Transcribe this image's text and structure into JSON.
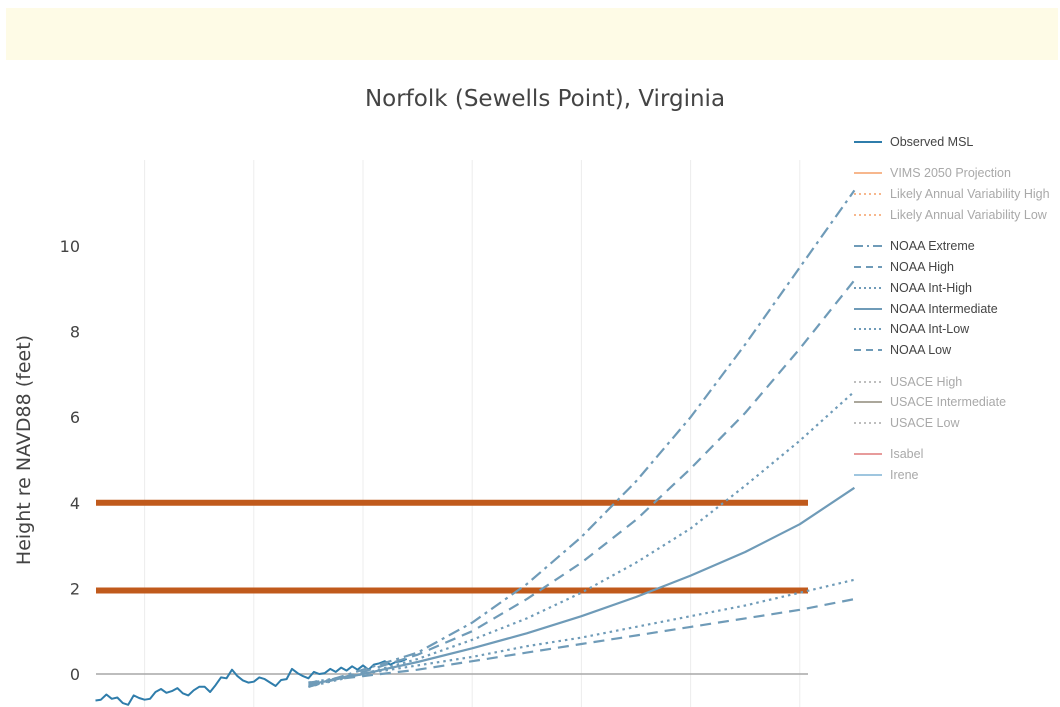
{
  "chart_data": {
    "type": "line",
    "title": "Norfolk (Sewells Point), Virginia",
    "ylabel": "Height re NAVD88 (feet)",
    "xlim": [
      1920,
      2100
    ],
    "ylim": [
      -0.8,
      11.5
    ],
    "yticks": [
      "0",
      "2",
      "4",
      "6",
      "8",
      "10"
    ],
    "ytick_values": [
      0,
      2,
      4,
      6,
      8,
      10
    ],
    "x_gridlines": [
      1930,
      1950,
      1970,
      1990,
      2010,
      2030,
      2050
    ],
    "hlines": [
      {
        "value": 4.0,
        "color": "#c05a1c"
      },
      {
        "value": 1.95,
        "color": "#c05a1c"
      },
      {
        "value": 0.0,
        "color": "#a7a7a7"
      }
    ],
    "series": [
      {
        "name": "Observed MSL",
        "style": "solid",
        "color": "#2f7dab",
        "visible": true,
        "x": [
          1921,
          1922,
          1923,
          1924,
          1925,
          1926,
          1927,
          1928,
          1929,
          1930,
          1931,
          1932,
          1933,
          1934,
          1935,
          1936,
          1937,
          1938,
          1939,
          1940,
          1941,
          1942,
          1943,
          1944,
          1945,
          1946,
          1947,
          1948,
          1949,
          1950,
          1951,
          1952,
          1953,
          1954,
          1955,
          1956,
          1957,
          1958,
          1959,
          1960,
          1961,
          1962,
          1963,
          1964,
          1965,
          1966,
          1967,
          1968,
          1969,
          1970,
          1971,
          1972,
          1973,
          1974,
          1975,
          1976,
          1977,
          1978
        ],
        "y": [
          -0.62,
          -0.6,
          -0.48,
          -0.58,
          -0.55,
          -0.68,
          -0.72,
          -0.5,
          -0.56,
          -0.6,
          -0.58,
          -0.42,
          -0.35,
          -0.44,
          -0.4,
          -0.33,
          -0.45,
          -0.5,
          -0.38,
          -0.3,
          -0.3,
          -0.42,
          -0.26,
          -0.08,
          -0.1,
          0.1,
          -0.05,
          -0.15,
          -0.2,
          -0.18,
          -0.08,
          -0.12,
          -0.2,
          -0.28,
          -0.14,
          -0.12,
          0.12,
          0.02,
          -0.05,
          -0.1,
          0.05,
          0.0,
          0.02,
          0.12,
          0.05,
          0.15,
          0.08,
          0.18,
          0.1,
          0.2,
          0.1,
          0.22,
          0.25,
          0.3,
          0.22,
          0.28,
          0.3,
          0.35
        ]
      },
      {
        "name": "VIMS 2050 Projection",
        "style": "solid",
        "color": "#f5a067",
        "visible": false
      },
      {
        "name": "Likely Annual Variability High",
        "style": "dot",
        "color": "#f5a067",
        "visible": false
      },
      {
        "name": "Likely Annual Variability Low",
        "style": "dot",
        "color": "#f5a067",
        "visible": false
      },
      {
        "name": "NOAA Extreme",
        "style": "dashdot",
        "color": "#6f9bb8",
        "visible": true,
        "x": [
          1960,
          1970,
          1980,
          1990,
          2000,
          2010,
          2020,
          2030,
          2040,
          2050,
          2060
        ],
        "y": [
          -0.3,
          0.1,
          0.5,
          1.2,
          2.1,
          3.2,
          4.5,
          6.0,
          7.7,
          9.5,
          11.3
        ]
      },
      {
        "name": "NOAA High",
        "style": "dash",
        "color": "#6f9bb8",
        "visible": true,
        "x": [
          1960,
          1970,
          1980,
          1990,
          2000,
          2010,
          2020,
          2030,
          2040,
          2050,
          2060
        ],
        "y": [
          -0.3,
          0.05,
          0.45,
          1.0,
          1.75,
          2.6,
          3.6,
          4.8,
          6.1,
          7.6,
          9.2
        ]
      },
      {
        "name": "NOAA Int-High",
        "style": "dot",
        "color": "#6f9bb8",
        "visible": true,
        "x": [
          1960,
          1970,
          1980,
          1990,
          2000,
          2010,
          2020,
          2030,
          2040,
          2050,
          2060
        ],
        "y": [
          -0.3,
          0.0,
          0.35,
          0.8,
          1.3,
          1.9,
          2.6,
          3.4,
          4.4,
          5.45,
          6.6
        ]
      },
      {
        "name": "NOAA Intermediate",
        "style": "solid",
        "color": "#6f9bb8",
        "visible": true,
        "x": [
          1960,
          1970,
          1980,
          1990,
          2000,
          2010,
          2020,
          2030,
          2040,
          2050,
          2060
        ],
        "y": [
          -0.25,
          0.0,
          0.28,
          0.6,
          0.95,
          1.35,
          1.8,
          2.3,
          2.85,
          3.5,
          4.35
        ]
      },
      {
        "name": "NOAA Int-Low",
        "style": "dot",
        "color": "#6f9bb8",
        "visible": true,
        "x": [
          1960,
          1970,
          1980,
          1990,
          2000,
          2010,
          2020,
          2030,
          2040,
          2050,
          2060
        ],
        "y": [
          -0.2,
          0.0,
          0.2,
          0.4,
          0.65,
          0.85,
          1.1,
          1.35,
          1.6,
          1.9,
          2.2
        ]
      },
      {
        "name": "NOAA Low",
        "style": "dash",
        "color": "#6f9bb8",
        "visible": true,
        "x": [
          1960,
          1970,
          1980,
          1990,
          2000,
          2010,
          2020,
          2030,
          2040,
          2050,
          2060
        ],
        "y": [
          -0.2,
          -0.05,
          0.1,
          0.3,
          0.5,
          0.7,
          0.9,
          1.1,
          1.3,
          1.5,
          1.75
        ]
      },
      {
        "name": "USACE High",
        "style": "dot",
        "color": "#a9a9a9",
        "visible": false
      },
      {
        "name": "USACE Intermediate",
        "style": "solid",
        "color": "#8f8a7a",
        "visible": false
      },
      {
        "name": "USACE Low",
        "style": "dot",
        "color": "#a9a9a9",
        "visible": false
      },
      {
        "name": "Isabel",
        "style": "solid",
        "color": "#e07a7a",
        "visible": false
      },
      {
        "name": "Irene",
        "style": "solid",
        "color": "#7fb3d5",
        "visible": false
      }
    ],
    "legend_position": "right"
  }
}
